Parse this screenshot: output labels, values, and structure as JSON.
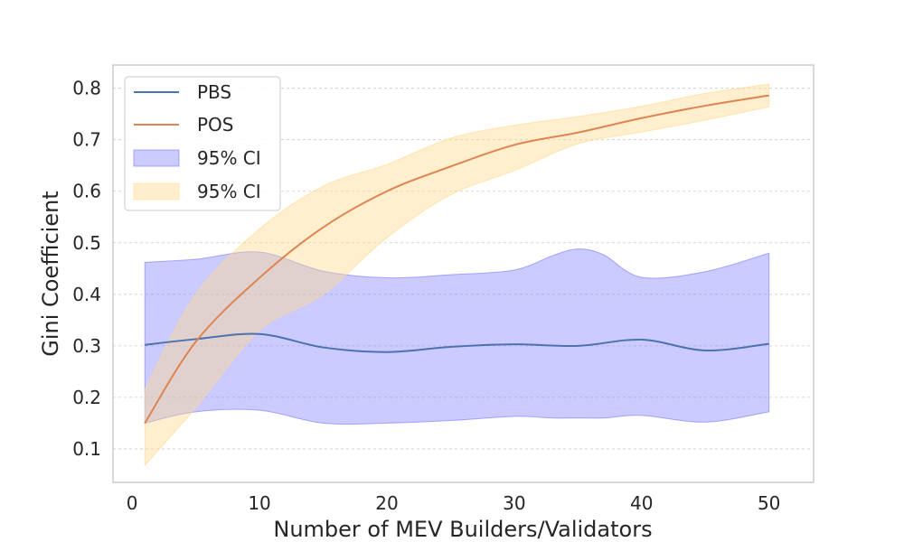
{
  "chart_data": {
    "type": "line",
    "xlabel": "Number of MEV Builders/Validators",
    "ylabel": "Gini Coefficient",
    "xlim": [
      -1.5,
      53.5
    ],
    "ylim": [
      0.035,
      0.845
    ],
    "xticks": [
      0,
      10,
      20,
      30,
      40,
      50
    ],
    "yticks": [
      0.1,
      0.2,
      0.3,
      0.4,
      0.5,
      0.6,
      0.7,
      0.8
    ],
    "grid": "horizontal dashed",
    "legend_position": "top-left",
    "series": [
      {
        "name": "PBS",
        "color": "#4c72b0",
        "x": [
          1,
          5,
          10,
          15,
          20,
          25,
          30,
          35,
          40,
          45,
          50
        ],
        "y": [
          0.302,
          0.313,
          0.323,
          0.297,
          0.288,
          0.298,
          0.303,
          0.3,
          0.312,
          0.291,
          0.304
        ]
      },
      {
        "name": "POS",
        "color": "#dd8452",
        "x": [
          1,
          5,
          10,
          15,
          20,
          25,
          30,
          35,
          40,
          45,
          50
        ],
        "y": [
          0.15,
          0.308,
          0.432,
          0.53,
          0.6,
          0.648,
          0.69,
          0.714,
          0.742,
          0.766,
          0.786
        ]
      }
    ],
    "bands": [
      {
        "name": "95% CI",
        "color": "#7777ff",
        "x": [
          1,
          5,
          10,
          15,
          20,
          25,
          30,
          33,
          35,
          37,
          40,
          45,
          50
        ],
        "lower": [
          0.15,
          0.172,
          0.175,
          0.15,
          0.15,
          0.155,
          0.163,
          0.16,
          0.16,
          0.16,
          0.165,
          0.152,
          0.172
        ],
        "upper": [
          0.462,
          0.468,
          0.482,
          0.445,
          0.432,
          0.438,
          0.447,
          0.475,
          0.488,
          0.477,
          0.433,
          0.444,
          0.48
        ]
      },
      {
        "name": "95% CI",
        "color": "#ffd98a",
        "x": [
          1,
          5,
          10,
          15,
          20,
          25,
          30,
          35,
          40,
          45,
          50
        ],
        "lower": [
          0.068,
          0.18,
          0.33,
          0.4,
          0.51,
          0.593,
          0.64,
          0.692,
          0.715,
          0.738,
          0.764
        ],
        "upper": [
          0.215,
          0.4,
          0.527,
          0.61,
          0.652,
          0.703,
          0.728,
          0.745,
          0.765,
          0.79,
          0.808
        ]
      }
    ]
  }
}
